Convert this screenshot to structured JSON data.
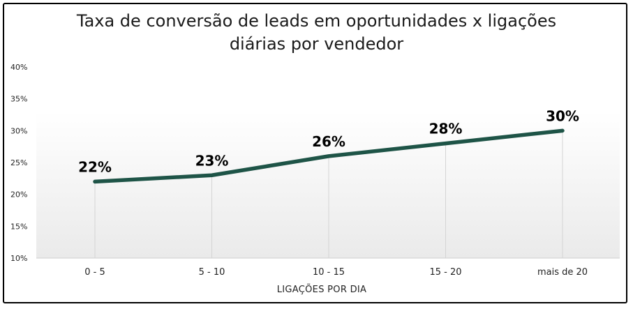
{
  "chart_data": {
    "type": "line",
    "title_lines": [
      "Taxa de conversão de leads em oportunidades x ligações",
      "diárias por vendedor"
    ],
    "xlabel": "LIGAÇÕES POR DIA",
    "ylabel": "",
    "categories": [
      "0 - 5",
      "5 - 10",
      "10 - 15",
      "15 - 20",
      "mais de 20"
    ],
    "series": [
      {
        "values": [
          22,
          23,
          26,
          28,
          30
        ],
        "labels": [
          "22%",
          "23%",
          "26%",
          "28%",
          "30%"
        ]
      }
    ],
    "ylim": [
      10,
      40
    ],
    "yticks": [
      "10%",
      "15%",
      "20%",
      "25%",
      "30%",
      "35%",
      "40%"
    ],
    "grid": "vertical",
    "legend": "none"
  },
  "colors": {
    "line": "#1e5447",
    "grid": "#d4d4d4",
    "plot_bg_top": "#ffffff",
    "plot_bg_bottom": "#eaeaea"
  }
}
